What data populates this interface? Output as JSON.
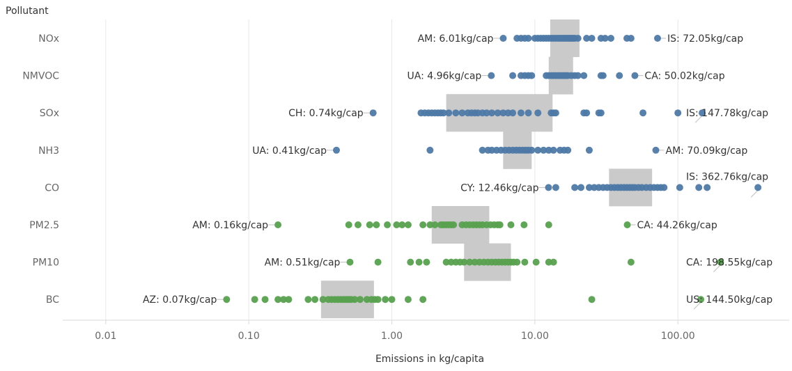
{
  "chart_data": {
    "type": "scatter",
    "ylabel": "Pollutant",
    "xlabel": "Emissions in kg/capita",
    "x_scale": "log",
    "xlim": [
      0.005,
      600
    ],
    "x_ticks": [
      {
        "value": 0.01,
        "label": "0.01"
      },
      {
        "value": 0.1,
        "label": "0.10"
      },
      {
        "value": 1,
        "label": "1.00"
      },
      {
        "value": 10,
        "label": "10.00"
      },
      {
        "value": 100,
        "label": "100.00"
      }
    ],
    "grid": "vertical",
    "colors": {
      "blue_group": "#4e79a7",
      "green_group": "#59a14f",
      "box": "#c7c7c7",
      "grid": "#e8e8e8",
      "text": "#333333",
      "axis_text": "#666666"
    },
    "categories": [
      "NOx",
      "NMVOC",
      "SOx",
      "NH3",
      "CO",
      "PM2.5",
      "PM10",
      "BC"
    ],
    "series": [
      {
        "pollutant": "NOx",
        "color": "#4e79a7",
        "box": [
          12.8,
          20.5
        ],
        "values": [
          6.01,
          7.5,
          8,
          8.5,
          9,
          10,
          10.5,
          11,
          11.5,
          12,
          12.5,
          13,
          13.5,
          14,
          14.5,
          15,
          15.5,
          16,
          16.5,
          17,
          17.5,
          18,
          18.5,
          19,
          20,
          23,
          25,
          29,
          31,
          34,
          44,
          47,
          72.05
        ],
        "min_label": "AM:  6.01kg/cap",
        "max_label": "IS:  72.05kg/cap"
      },
      {
        "pollutant": "NMVOC",
        "color": "#4e79a7",
        "box": [
          12.5,
          18.5
        ],
        "values": [
          4.96,
          7,
          8,
          8.5,
          9,
          9.5,
          12,
          12.5,
          13,
          13.5,
          14,
          14.5,
          15,
          15.5,
          16,
          16.5,
          17,
          18,
          19,
          20,
          22,
          29,
          30,
          39,
          50.02
        ],
        "min_label": "UA:  4.96kg/cap",
        "max_label": "CA:  50.02kg/cap"
      },
      {
        "pollutant": "SOx",
        "color": "#4e79a7",
        "box": [
          2.4,
          13.3
        ],
        "values": [
          0.74,
          1.6,
          1.7,
          1.8,
          1.9,
          2.0,
          2.1,
          2.2,
          2.3,
          2.5,
          2.8,
          3.1,
          3.4,
          3.6,
          3.8,
          4.0,
          4.3,
          4.6,
          5,
          5.5,
          6,
          6.5,
          7,
          8,
          9,
          10.5,
          13,
          13.5,
          14,
          22,
          23,
          28,
          29,
          57,
          100,
          147.78
        ],
        "min_label": "CH:  0.74kg/cap",
        "max_label": "IS:  147.78kg/cap"
      },
      {
        "pollutant": "NH3",
        "color": "#4e79a7",
        "box": [
          6.0,
          9.5
        ],
        "values": [
          0.41,
          1.85,
          4.3,
          4.7,
          5,
          5.4,
          5.8,
          6.2,
          6.6,
          7,
          7.4,
          7.8,
          8.2,
          8.6,
          9,
          9.5,
          10.5,
          11.5,
          12.5,
          13.5,
          15,
          16,
          17,
          24,
          70.09
        ],
        "min_label": "UA:  0.41kg/cap",
        "max_label": "AM:  70.09kg/cap"
      },
      {
        "pollutant": "CO",
        "color": "#4e79a7",
        "box": [
          33,
          66
        ],
        "values": [
          12.46,
          14,
          19,
          21,
          24,
          26,
          28,
          30,
          32,
          34,
          36,
          38,
          40,
          42,
          44,
          46,
          48,
          50,
          53,
          56,
          60,
          64,
          68,
          72,
          76,
          80,
          103,
          140,
          160,
          362.76
        ],
        "min_label": "CY:  12.46kg/cap",
        "max_label": "IS:  362.76kg/cap"
      },
      {
        "pollutant": "PM2.5",
        "color": "#59a14f",
        "box": [
          1.9,
          4.8
        ],
        "values": [
          0.16,
          0.5,
          0.58,
          0.7,
          0.78,
          0.93,
          1.08,
          1.18,
          1.3,
          1.65,
          1.85,
          2.0,
          2.2,
          2.3,
          2.4,
          2.5,
          2.6,
          2.7,
          3.1,
          3.3,
          3.5,
          3.7,
          3.9,
          4.1,
          4.3,
          4.6,
          4.9,
          5.2,
          5.5,
          5.7,
          6.8,
          8.4,
          12.5,
          44.26
        ],
        "min_label": "AM:  0.16kg/cap",
        "max_label": "CA:  44.26kg/cap"
      },
      {
        "pollutant": "PM10",
        "color": "#59a14f",
        "box": [
          3.2,
          6.8
        ],
        "values": [
          0.51,
          0.8,
          1.35,
          1.55,
          1.75,
          2.4,
          2.6,
          2.8,
          3.0,
          3.2,
          3.5,
          3.8,
          4.1,
          4.4,
          4.7,
          5.0,
          5.3,
          5.6,
          5.9,
          6.2,
          6.5,
          6.8,
          7.1,
          7.5,
          8.5,
          10.2,
          12.5,
          13.5,
          47,
          198.55
        ],
        "min_label": "AM:  0.51kg/cap",
        "max_label": "CA:  198.55kg/cap"
      },
      {
        "pollutant": "BC",
        "color": "#59a14f",
        "box": [
          0.32,
          0.75
        ],
        "values": [
          0.07,
          0.11,
          0.13,
          0.16,
          0.175,
          0.19,
          0.26,
          0.29,
          0.33,
          0.36,
          0.38,
          0.4,
          0.42,
          0.44,
          0.46,
          0.48,
          0.5,
          0.52,
          0.55,
          0.6,
          0.67,
          0.72,
          0.76,
          0.8,
          0.9,
          1.0,
          1.3,
          1.65,
          25,
          144.5
        ],
        "min_label": "AZ:  0.07kg/cap",
        "max_label": "US:  144.50kg/cap"
      }
    ]
  }
}
